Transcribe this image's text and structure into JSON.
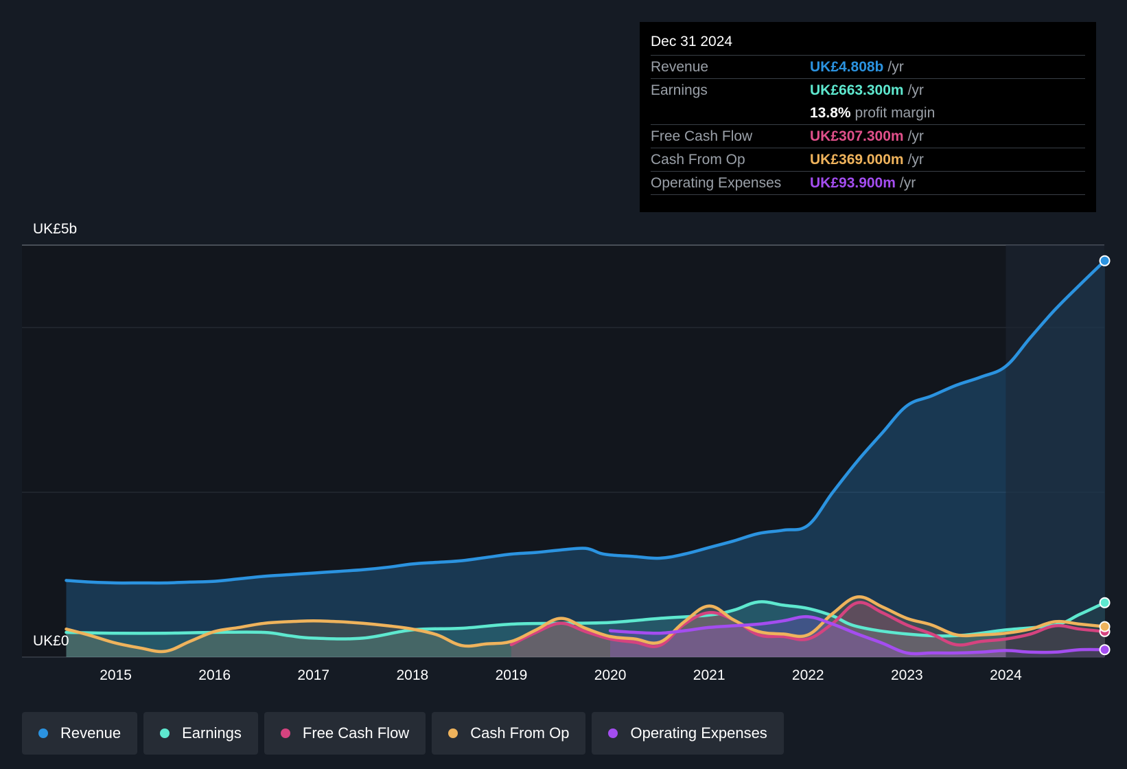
{
  "tooltip": {
    "date": "Dec 31 2024",
    "rows": [
      {
        "label": "Revenue",
        "value": "UK£4.808b",
        "unit": "/yr",
        "color": "#2b93e0"
      },
      {
        "label": "Earnings",
        "value": "UK£663.300m",
        "unit": "/yr",
        "color": "#5ee8cf"
      },
      {
        "label": "",
        "value": "13.8%",
        "unit": "profit margin",
        "color": "#ffffff"
      },
      {
        "label": "Free Cash Flow",
        "value": "UK£307.300m",
        "unit": "/yr",
        "color": "#e0508a"
      },
      {
        "label": "Cash From Op",
        "value": "UK£369.000m",
        "unit": "/yr",
        "color": "#efb35c"
      },
      {
        "label": "Operating Expenses",
        "value": "UK£93.900m",
        "unit": "/yr",
        "color": "#a44df0"
      }
    ]
  },
  "legend": [
    {
      "label": "Revenue",
      "color": "#2b93e0"
    },
    {
      "label": "Earnings",
      "color": "#5ee8cf"
    },
    {
      "label": "Free Cash Flow",
      "color": "#d5437f"
    },
    {
      "label": "Cash From Op",
      "color": "#efb35c"
    },
    {
      "label": "Operating Expenses",
      "color": "#a44df0"
    }
  ],
  "chart_data": {
    "type": "line",
    "title": "",
    "xlabel": "",
    "ylabel": "",
    "y_top_label": "UK£5b",
    "y_bottom_label": "UK£0",
    "xlim": [
      2014.0,
      2025.0
    ],
    "ylim": [
      0,
      5
    ],
    "xticks": [
      2015,
      2016,
      2017,
      2018,
      2019,
      2020,
      2021,
      2022,
      2023,
      2024
    ],
    "series": [
      {
        "name": "Revenue",
        "color": "#2b93e0",
        "area": true,
        "x": [
          2014.5,
          2014.75,
          2015.0,
          2015.25,
          2015.5,
          2015.75,
          2016.0,
          2016.25,
          2016.5,
          2016.75,
          2017.0,
          2017.25,
          2017.5,
          2017.75,
          2018.0,
          2018.25,
          2018.5,
          2018.75,
          2019.0,
          2019.25,
          2019.5,
          2019.75,
          2019.9,
          2020.0,
          2020.25,
          2020.5,
          2020.75,
          2021.0,
          2021.25,
          2021.5,
          2021.75,
          2022.0,
          2022.25,
          2022.5,
          2022.75,
          2023.0,
          2023.25,
          2023.5,
          2023.75,
          2024.0,
          2024.25,
          2024.5,
          2024.75,
          2025.0
        ],
        "y": [
          0.93,
          0.91,
          0.9,
          0.9,
          0.9,
          0.91,
          0.92,
          0.95,
          0.98,
          1.0,
          1.02,
          1.04,
          1.06,
          1.09,
          1.13,
          1.15,
          1.17,
          1.21,
          1.25,
          1.27,
          1.3,
          1.32,
          1.26,
          1.24,
          1.22,
          1.2,
          1.25,
          1.33,
          1.41,
          1.5,
          1.54,
          1.6,
          2.0,
          2.38,
          2.72,
          3.05,
          3.17,
          3.3,
          3.4,
          3.53,
          3.88,
          4.22,
          4.52,
          4.81
        ]
      },
      {
        "name": "Earnings",
        "color": "#5ee8cf",
        "area": true,
        "x": [
          2014.5,
          2015.0,
          2015.5,
          2016.0,
          2016.5,
          2016.75,
          2017.0,
          2017.5,
          2018.0,
          2018.5,
          2019.0,
          2019.5,
          2020.0,
          2020.5,
          2021.0,
          2021.25,
          2021.5,
          2021.75,
          2022.0,
          2022.25,
          2022.5,
          2023.0,
          2023.5,
          2024.0,
          2024.5,
          2024.75,
          2025.0
        ],
        "y": [
          0.3,
          0.29,
          0.29,
          0.3,
          0.3,
          0.26,
          0.23,
          0.23,
          0.33,
          0.35,
          0.4,
          0.41,
          0.42,
          0.47,
          0.51,
          0.57,
          0.67,
          0.63,
          0.59,
          0.5,
          0.37,
          0.28,
          0.26,
          0.33,
          0.39,
          0.52,
          0.66
        ]
      },
      {
        "name": "Free Cash Flow",
        "color": "#d5437f",
        "area": true,
        "x": [
          2019.0,
          2019.25,
          2019.5,
          2019.75,
          2020.0,
          2020.25,
          2020.5,
          2020.75,
          2021.0,
          2021.25,
          2021.5,
          2021.75,
          2022.0,
          2022.25,
          2022.5,
          2022.75,
          2023.0,
          2023.25,
          2023.5,
          2023.75,
          2024.0,
          2024.25,
          2024.5,
          2024.75,
          2025.0
        ],
        "y": [
          0.15,
          0.3,
          0.41,
          0.31,
          0.22,
          0.18,
          0.14,
          0.4,
          0.54,
          0.45,
          0.27,
          0.25,
          0.22,
          0.41,
          0.66,
          0.54,
          0.39,
          0.28,
          0.15,
          0.19,
          0.22,
          0.28,
          0.38,
          0.34,
          0.31
        ]
      },
      {
        "name": "Cash From Op",
        "color": "#efb35c",
        "area": true,
        "x": [
          2014.5,
          2014.75,
          2015.0,
          2015.25,
          2015.5,
          2015.75,
          2016.0,
          2016.25,
          2016.5,
          2016.75,
          2017.0,
          2017.25,
          2017.5,
          2017.75,
          2018.0,
          2018.25,
          2018.5,
          2018.75,
          2019.0,
          2019.25,
          2019.5,
          2019.75,
          2020.0,
          2020.25,
          2020.5,
          2020.75,
          2021.0,
          2021.25,
          2021.5,
          2021.75,
          2022.0,
          2022.25,
          2022.5,
          2022.75,
          2023.0,
          2023.25,
          2023.5,
          2023.75,
          2024.0,
          2024.25,
          2024.5,
          2024.75,
          2025.0
        ],
        "y": [
          0.34,
          0.26,
          0.17,
          0.11,
          0.07,
          0.19,
          0.31,
          0.36,
          0.41,
          0.43,
          0.44,
          0.43,
          0.41,
          0.38,
          0.34,
          0.27,
          0.14,
          0.16,
          0.19,
          0.33,
          0.47,
          0.35,
          0.25,
          0.22,
          0.18,
          0.43,
          0.62,
          0.45,
          0.31,
          0.28,
          0.27,
          0.53,
          0.73,
          0.61,
          0.47,
          0.39,
          0.27,
          0.27,
          0.29,
          0.34,
          0.43,
          0.4,
          0.37
        ]
      },
      {
        "name": "Operating Expenses",
        "color": "#a44df0",
        "area": true,
        "x": [
          2020.0,
          2020.25,
          2020.5,
          2020.75,
          2021.0,
          2021.25,
          2021.5,
          2021.75,
          2022.0,
          2022.25,
          2022.5,
          2022.75,
          2023.0,
          2023.25,
          2023.5,
          2023.75,
          2024.0,
          2024.25,
          2024.5,
          2024.75,
          2025.0
        ],
        "y": [
          0.32,
          0.3,
          0.29,
          0.32,
          0.36,
          0.38,
          0.4,
          0.44,
          0.49,
          0.4,
          0.28,
          0.17,
          0.05,
          0.05,
          0.05,
          0.06,
          0.08,
          0.06,
          0.06,
          0.09,
          0.09
        ]
      }
    ]
  }
}
